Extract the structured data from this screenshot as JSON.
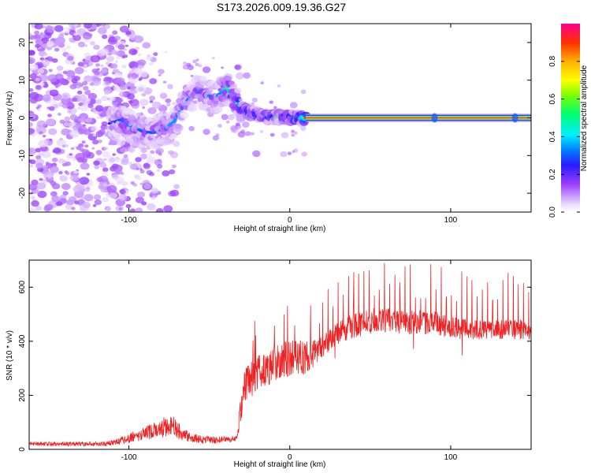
{
  "title": "S173.2026.009.19.36.G27",
  "chart_data": [
    {
      "type": "heatmap",
      "xlabel": "Height of straight line (km)",
      "ylabel": "Frequency (Hz)",
      "xlim": [
        -162,
        150
      ],
      "ylim": [
        -25,
        25
      ],
      "x_ticks": [
        -100,
        0,
        100
      ],
      "x_tick_labels": [
        "-100",
        "0",
        "100"
      ],
      "y_ticks": [
        -20,
        -10,
        0,
        10,
        20
      ],
      "y_tick_labels": [
        "-20",
        "-10",
        "0",
        "10",
        "20"
      ],
      "colorbar": {
        "label": "Normalized spectral amplitude",
        "range": [
          0,
          1
        ],
        "ticks": [
          0.0,
          0.2,
          0.4,
          0.6,
          0.8
        ],
        "tick_labels": [
          "0.0",
          "0.2",
          "0.4",
          "0.6",
          "0.8"
        ],
        "colormap": "rainbow"
      },
      "ridge": {
        "x": [
          -112,
          -105,
          -100,
          -92,
          -85,
          -78,
          -72,
          -65,
          -58,
          -52,
          -46,
          -42,
          -39,
          -35,
          -30,
          -25,
          -20,
          -15,
          -10,
          -5,
          0,
          5,
          10,
          150
        ],
        "freq": [
          -1.5,
          -0.5,
          -2,
          -3.5,
          -4,
          -3,
          -1,
          4,
          7.5,
          6,
          5.5,
          7,
          8,
          5,
          2.5,
          1.5,
          0.8,
          0.5,
          0.3,
          0.2,
          0.1,
          0.05,
          0,
          0
        ],
        "amplitude": [
          0.25,
          0.3,
          0.35,
          0.3,
          0.3,
          0.35,
          0.35,
          0.3,
          0.35,
          0.35,
          0.3,
          0.35,
          0.5,
          0.4,
          0.55,
          0.6,
          0.5,
          0.5,
          0.55,
          0.55,
          0.6,
          0.65,
          0.9,
          0.9
        ]
      },
      "noise_region_x": [
        -162,
        -108
      ],
      "noise_amplitude": 0.15
    },
    {
      "type": "line",
      "xlabel": "Height of straight line (km)",
      "ylabel": "SNR (10 * v/v)",
      "xlim": [
        -162,
        150
      ],
      "ylim": [
        0,
        700
      ],
      "x_ticks": [
        -100,
        0,
        100
      ],
      "x_tick_labels": [
        "-100",
        "0",
        "100"
      ],
      "y_ticks": [
        0,
        200,
        400,
        600
      ],
      "y_tick_labels": [
        "0",
        "200",
        "400",
        "600"
      ],
      "color": "#ee2222",
      "envelope": {
        "x": [
          -162,
          -115,
          -110,
          -100,
          -90,
          -80,
          -75,
          -70,
          -65,
          -55,
          -40,
          -33,
          -31,
          -28,
          -20,
          -10,
          0,
          10,
          20,
          24,
          30,
          40,
          55,
          70,
          90,
          100,
          120,
          150
        ],
        "mean": [
          20,
          20,
          25,
          40,
          60,
          75,
          95,
          75,
          50,
          35,
          35,
          40,
          120,
          240,
          280,
          320,
          340,
          340,
          370,
          400,
          430,
          460,
          480,
          470,
          470,
          450,
          440,
          445
        ],
        "noise": [
          8,
          8,
          10,
          18,
          25,
          35,
          45,
          35,
          22,
          15,
          12,
          12,
          45,
          60,
          70,
          70,
          70,
          60,
          45,
          40,
          40,
          50,
          45,
          45,
          45,
          40,
          35,
          40
        ]
      },
      "spike_spacing_km": 3.2,
      "spike_max": 690
    }
  ]
}
